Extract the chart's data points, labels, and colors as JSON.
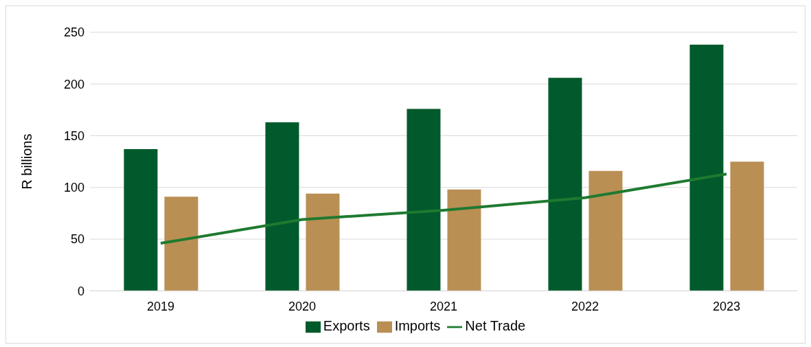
{
  "chart_data": {
    "type": "bar",
    "ylabel": "R billions",
    "categories": [
      "2019",
      "2020",
      "2021",
      "2022",
      "2023"
    ],
    "series": [
      {
        "name": "Exports",
        "color": "#005a2b",
        "values": [
          137,
          163,
          176,
          206,
          238
        ]
      },
      {
        "name": "Imports",
        "color": "#b98f54",
        "values": [
          91,
          94,
          98,
          116,
          125
        ]
      },
      {
        "name": "Net Trade",
        "type": "line",
        "color": "#1e7a30",
        "values": [
          46,
          69,
          78,
          90,
          113
        ]
      }
    ],
    "ylim": [
      0,
      250
    ],
    "yticks": [
      0,
      50,
      100,
      150,
      200,
      250
    ],
    "grid": "y",
    "legend": "bottom",
    "marker": "none",
    "line_style": "solid"
  }
}
